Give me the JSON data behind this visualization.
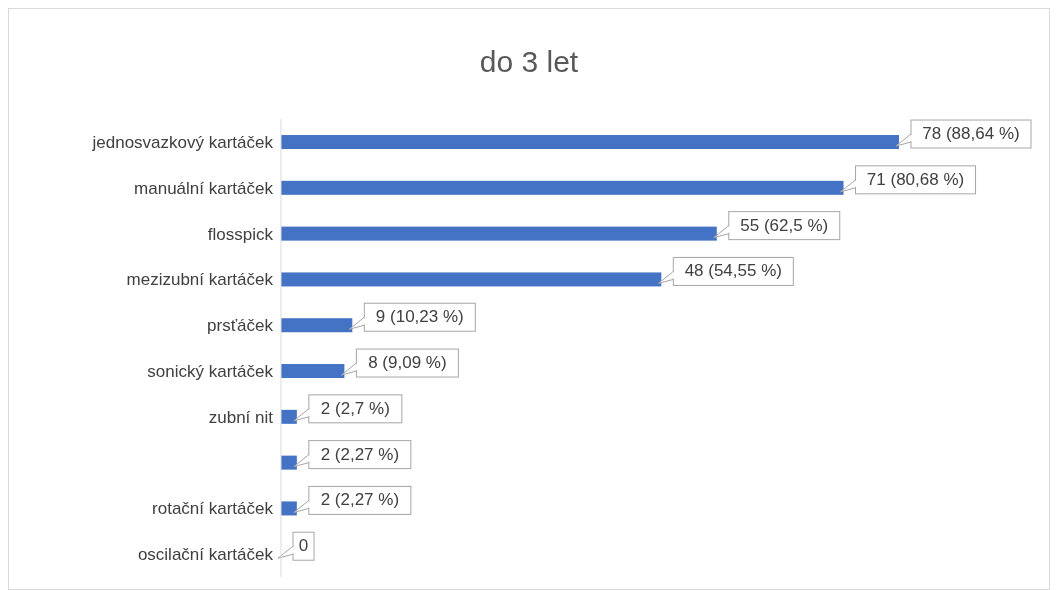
{
  "chart_data": {
    "type": "bar",
    "orientation": "horizontal",
    "title": "do 3 let",
    "categories": [
      "jednosvazkový kartáček",
      "manuální kartáček",
      "flosspick",
      "mezizubní kartáček",
      "prsťáček",
      "sonický kartáček",
      "zubní nit",
      null,
      "rotační kartáček",
      "oscilační kartáček"
    ],
    "values": [
      78,
      71,
      55,
      48,
      9,
      8,
      2,
      2,
      2,
      0
    ],
    "value_labels": [
      "78 (88,64 %)",
      "71 (80,68 %)",
      "55 (62,5 %)",
      "48 (54,55 %)",
      "9 (10,23 %)",
      "8 (9,09 %)",
      "2 (2,7 %)",
      "2 (2,27 %)",
      "2 (2,27 %)",
      "0"
    ],
    "color": "#4472c4",
    "grid": false,
    "legend": false
  }
}
